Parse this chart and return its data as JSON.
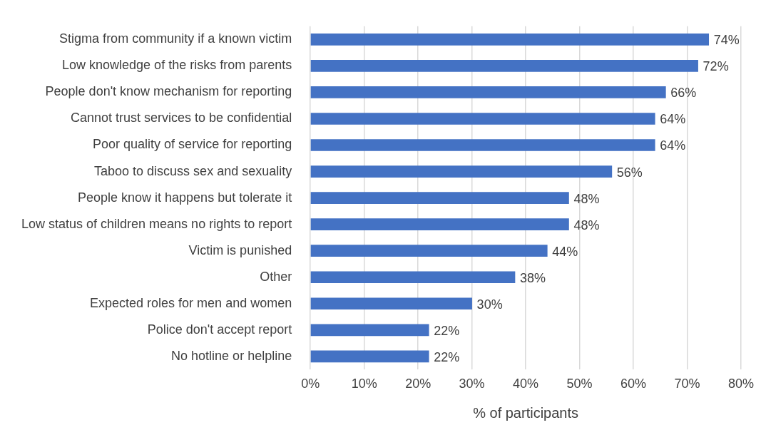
{
  "chart_data": {
    "type": "bar",
    "orientation": "horizontal",
    "xlabel": "% of participants",
    "categories": [
      "Stigma from community if a known victim",
      "Low knowledge of the risks from parents",
      "People don't know mechanism for reporting",
      "Cannot trust services to be confidential",
      "Poor quality of service for reporting",
      "Taboo to discuss sex and sexuality",
      "People know it happens but tolerate it",
      "Low status of children means no rights to report",
      "Victim is punished",
      "Other",
      "Expected roles for men and women",
      "Police don't accept report",
      "No hotline or helpline"
    ],
    "values": [
      74,
      72,
      66,
      64,
      64,
      56,
      48,
      48,
      44,
      38,
      30,
      22,
      22
    ],
    "value_labels": [
      "74%",
      "72%",
      "66%",
      "64%",
      "64%",
      "56%",
      "48%",
      "48%",
      "44%",
      "38%",
      "30%",
      "22%",
      "22%"
    ],
    "color": "#4472c4",
    "xlim": [
      0,
      80
    ],
    "xticks": [
      {
        "value": 0,
        "label": "0%"
      },
      {
        "value": 10,
        "label": "10%"
      },
      {
        "value": 20,
        "label": "20%"
      },
      {
        "value": 30,
        "label": "30%"
      },
      {
        "value": 40,
        "label": "40%"
      },
      {
        "value": 50,
        "label": "50%"
      },
      {
        "value": 60,
        "label": "60%"
      },
      {
        "value": 70,
        "label": "70%"
      },
      {
        "value": 80,
        "label": "80%"
      }
    ],
    "grid": "x"
  }
}
